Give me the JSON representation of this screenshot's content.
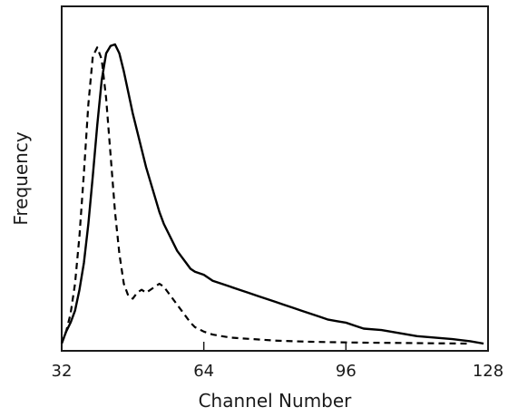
{
  "chart_data": {
    "type": "line",
    "xlabel": "Channel Number",
    "ylabel": "Frequency",
    "xlim": [
      32,
      128
    ],
    "ylim": [
      0,
      1
    ],
    "xticks": [
      32,
      64,
      96,
      128
    ],
    "grid": false,
    "series": [
      {
        "style": "solid",
        "color": "#000000",
        "x": [
          32,
          33,
          34,
          35,
          36,
          37,
          38,
          39,
          40,
          41,
          42,
          43,
          44,
          45,
          46,
          47,
          48,
          49,
          50,
          51,
          52,
          53,
          54,
          55,
          56,
          57,
          58,
          59,
          60,
          61,
          62,
          64,
          66,
          68,
          70,
          72,
          74,
          76,
          78,
          80,
          82,
          84,
          86,
          88,
          90,
          92,
          94,
          96,
          98,
          100,
          104,
          108,
          112,
          116,
          120,
          124,
          127
        ],
        "values": [
          0.0,
          0.04,
          0.07,
          0.11,
          0.18,
          0.27,
          0.4,
          0.56,
          0.73,
          0.88,
          0.97,
          0.995,
          1.0,
          0.97,
          0.91,
          0.84,
          0.77,
          0.71,
          0.65,
          0.59,
          0.54,
          0.49,
          0.44,
          0.4,
          0.37,
          0.34,
          0.31,
          0.29,
          0.27,
          0.25,
          0.24,
          0.23,
          0.21,
          0.2,
          0.19,
          0.18,
          0.17,
          0.16,
          0.15,
          0.14,
          0.13,
          0.12,
          0.11,
          0.1,
          0.09,
          0.08,
          0.075,
          0.07,
          0.06,
          0.05,
          0.045,
          0.035,
          0.025,
          0.02,
          0.015,
          0.008,
          0.0
        ]
      },
      {
        "style": "dashed",
        "color": "#000000",
        "x": [
          32,
          33,
          34,
          35,
          36,
          37,
          38,
          39,
          40,
          41,
          42,
          43,
          44,
          45,
          46,
          47,
          48,
          49,
          50,
          51,
          52,
          53,
          54,
          55,
          56,
          57,
          58,
          59,
          60,
          61,
          62,
          64,
          66,
          68,
          70,
          72,
          76,
          80,
          84,
          88,
          92,
          96,
          100,
          108,
          116,
          124
        ],
        "values": [
          0.0,
          0.04,
          0.1,
          0.2,
          0.36,
          0.57,
          0.8,
          0.96,
          0.99,
          0.95,
          0.82,
          0.63,
          0.44,
          0.3,
          0.2,
          0.16,
          0.15,
          0.17,
          0.18,
          0.17,
          0.18,
          0.19,
          0.2,
          0.19,
          0.17,
          0.15,
          0.13,
          0.11,
          0.09,
          0.07,
          0.055,
          0.04,
          0.03,
          0.025,
          0.02,
          0.018,
          0.014,
          0.01,
          0.008,
          0.006,
          0.005,
          0.004,
          0.003,
          0.002,
          0.001,
          0.0
        ]
      }
    ]
  }
}
